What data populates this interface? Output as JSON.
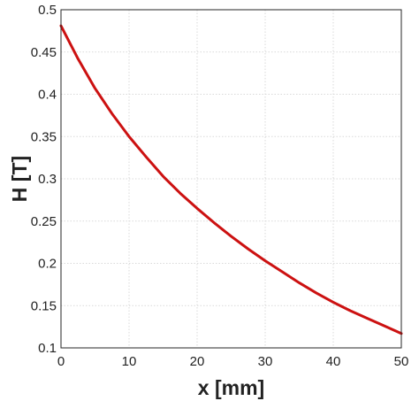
{
  "chart_data": {
    "type": "line",
    "title": "",
    "xlabel": "x [mm]",
    "ylabel": "H [T]",
    "xlim": [
      0,
      50
    ],
    "ylim": [
      0.1,
      0.5
    ],
    "xticks": [
      0,
      10,
      20,
      30,
      40,
      50
    ],
    "yticks": [
      0.1,
      0.15,
      0.2,
      0.25,
      0.3,
      0.35,
      0.4,
      0.45,
      0.5
    ],
    "xtick_labels": [
      "0",
      "10",
      "20",
      "30",
      "40",
      "50"
    ],
    "ytick_labels": [
      "0.1",
      "0.15",
      "0.2",
      "0.25",
      "0.3",
      "0.35",
      "0.4",
      "0.45",
      "0.5"
    ],
    "grid": true,
    "legend": "none",
    "series": [
      {
        "color": "#cc1111",
        "x": [
          0,
          2.5,
          5,
          7.5,
          10,
          12.5,
          15,
          17.5,
          20,
          22.5,
          25,
          27.5,
          30,
          32.5,
          35,
          37.5,
          40,
          42.5,
          45,
          47.5,
          50
        ],
        "y": [
          0.481,
          0.442,
          0.407,
          0.377,
          0.35,
          0.326,
          0.303,
          0.283,
          0.265,
          0.248,
          0.232,
          0.217,
          0.203,
          0.19,
          0.177,
          0.165,
          0.154,
          0.144,
          0.135,
          0.126,
          0.117
        ]
      }
    ]
  }
}
